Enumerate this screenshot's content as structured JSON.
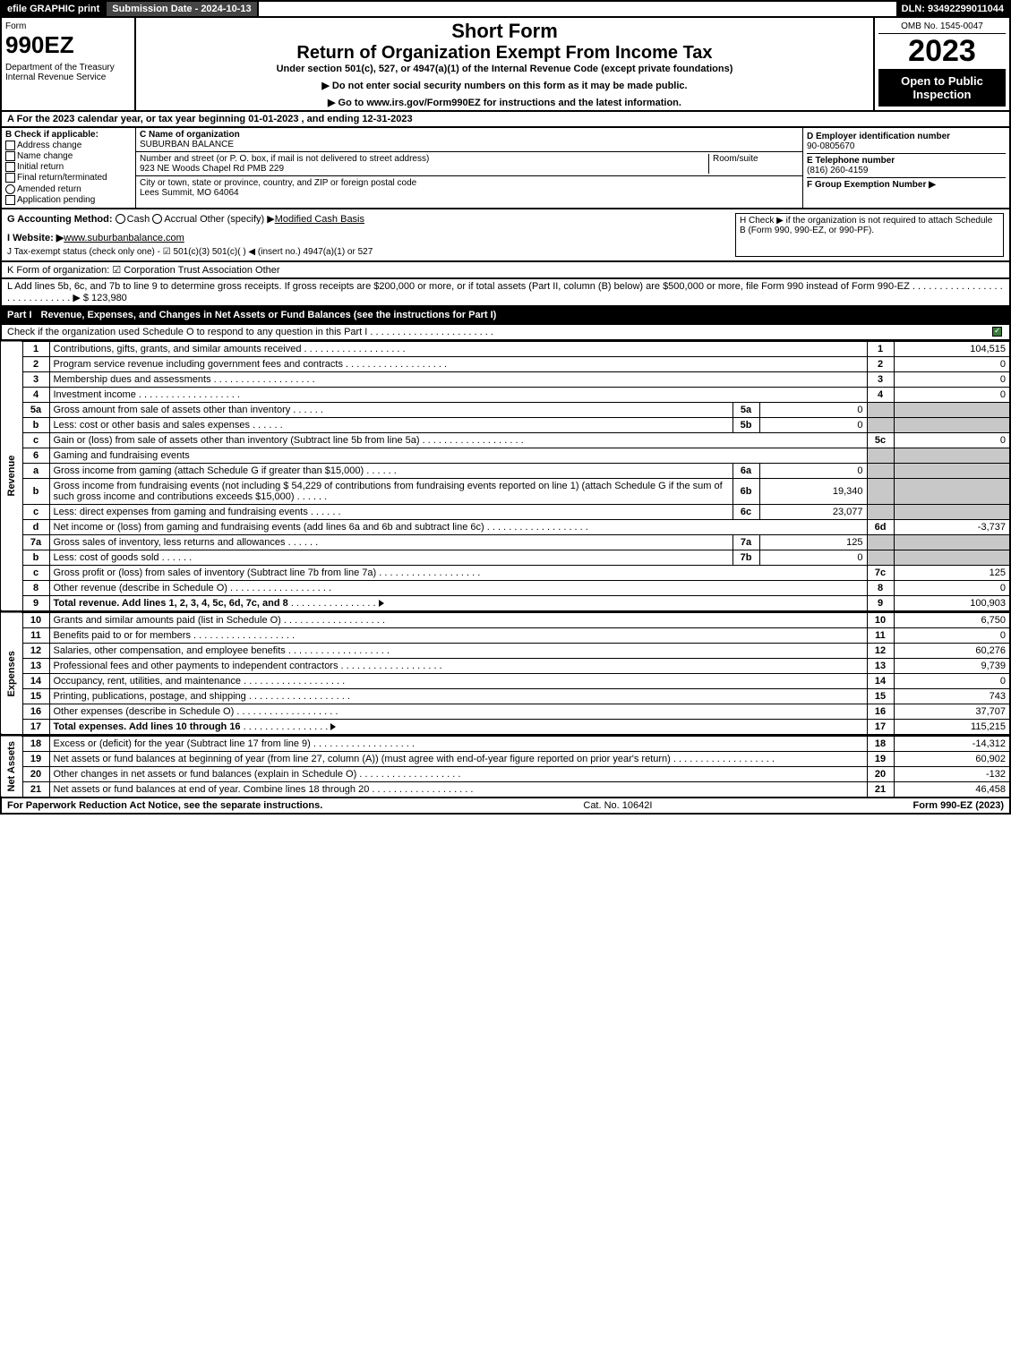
{
  "top": {
    "efile": "efile GRAPHIC print",
    "submission": "Submission Date - 2024-10-13",
    "dln": "DLN: 93492299011044"
  },
  "header": {
    "form_word": "Form",
    "form_num": "990EZ",
    "dept": "Department of the Treasury\nInternal Revenue Service",
    "short": "Short Form",
    "return": "Return of Organization Exempt From Income Tax",
    "under": "Under section 501(c), 527, or 4947(a)(1) of the Internal Revenue Code (except private foundations)",
    "note1": "▶ Do not enter social security numbers on this form as it may be made public.",
    "note2": "▶ Go to www.irs.gov/Form990EZ for instructions and the latest information.",
    "omb": "OMB No. 1545-0047",
    "year": "2023",
    "open": "Open to Public Inspection"
  },
  "line_a": "A  For the 2023 calendar year, or tax year beginning 01-01-2023 , and ending 12-31-2023",
  "b": {
    "label": "B  Check if applicable:",
    "opts": [
      "Address change",
      "Name change",
      "Initial return",
      "Final return/terminated",
      "Amended return",
      "Application pending"
    ]
  },
  "c": {
    "name_lbl": "C Name of organization",
    "name": "SUBURBAN BALANCE",
    "addr_lbl": "Number and street (or P. O. box, if mail is not delivered to street address)",
    "room_lbl": "Room/suite",
    "addr": "923 NE Woods Chapel Rd PMB 229",
    "city_lbl": "City or town, state or province, country, and ZIP or foreign postal code",
    "city": "Lees Summit, MO  64064"
  },
  "d": {
    "ein_lbl": "D Employer identification number",
    "ein": "90-0805670",
    "tel_lbl": "E Telephone number",
    "tel": "(816) 260-4159",
    "grp_lbl": "F Group Exemption Number  ▶"
  },
  "g": {
    "label": "G Accounting Method:",
    "opts": "Cash    Accrual    Other (specify) ▶",
    "val": "Modified Cash Basis"
  },
  "h": "H  Check ▶     if the organization is not required to attach Schedule B (Form 990, 990-EZ, or 990-PF).",
  "i": {
    "label": "I Website: ▶",
    "val": "www.suburbanbalance.com"
  },
  "j": "J Tax-exempt status (check only one) -  ☑ 501(c)(3)   501(c)(  ) ◀ (insert no.)   4947(a)(1) or   527",
  "k": "K Form of organization:   ☑ Corporation    Trust    Association    Other",
  "l": "L Add lines 5b, 6c, and 7b to line 9 to determine gross receipts. If gross receipts are $200,000 or more, or if total assets (Part II, column (B) below) are $500,000 or more, file Form 990 instead of Form 990-EZ  . . . . . . . . . . . . . . . . . . . . . . . . . . . . .  ▶ $ 123,980",
  "part1": {
    "num": "Part I",
    "title": "Revenue, Expenses, and Changes in Net Assets or Fund Balances (see the instructions for Part I)",
    "desc": "Check if the organization used Schedule O to respond to any question in this Part I . . . . . . . . . . . . . . . . . . . . . . ."
  },
  "sides": {
    "rev": "Revenue",
    "exp": "Expenses",
    "net": "Net Assets"
  },
  "rows": [
    {
      "n": "1",
      "desc": "Contributions, gifts, grants, and similar amounts received",
      "ln": "1",
      "val": "104,515"
    },
    {
      "n": "2",
      "desc": "Program service revenue including government fees and contracts",
      "ln": "2",
      "val": "0"
    },
    {
      "n": "3",
      "desc": "Membership dues and assessments",
      "ln": "3",
      "val": "0"
    },
    {
      "n": "4",
      "desc": "Investment income",
      "ln": "4",
      "val": "0"
    },
    {
      "n": "5a",
      "desc": "Gross amount from sale of assets other than inventory",
      "sub": "5a",
      "subval": "0"
    },
    {
      "n": "b",
      "desc": "Less: cost or other basis and sales expenses",
      "sub": "5b",
      "subval": "0"
    },
    {
      "n": "c",
      "desc": "Gain or (loss) from sale of assets other than inventory (Subtract line 5b from line 5a)",
      "ln": "5c",
      "val": "0"
    },
    {
      "n": "6",
      "desc": "Gaming and fundraising events"
    },
    {
      "n": "a",
      "desc": "Gross income from gaming (attach Schedule G if greater than $15,000)",
      "sub": "6a",
      "subval": "0"
    },
    {
      "n": "b",
      "desc": "Gross income from fundraising events (not including $  54,229          of contributions from fundraising events reported on line 1) (attach Schedule G if the sum of such gross income and contributions exceeds $15,000)",
      "sub": "6b",
      "subval": "19,340"
    },
    {
      "n": "c",
      "desc": "Less: direct expenses from gaming and fundraising events",
      "sub": "6c",
      "subval": "23,077"
    },
    {
      "n": "d",
      "desc": "Net income or (loss) from gaming and fundraising events (add lines 6a and 6b and subtract line 6c)",
      "ln": "6d",
      "val": "-3,737"
    },
    {
      "n": "7a",
      "desc": "Gross sales of inventory, less returns and allowances",
      "sub": "7a",
      "subval": "125"
    },
    {
      "n": "b",
      "desc": "Less: cost of goods sold",
      "sub": "7b",
      "subval": "0"
    },
    {
      "n": "c",
      "desc": "Gross profit or (loss) from sales of inventory (Subtract line 7b from line 7a)",
      "ln": "7c",
      "val": "125"
    },
    {
      "n": "8",
      "desc": "Other revenue (describe in Schedule O)",
      "ln": "8",
      "val": "0"
    },
    {
      "n": "9",
      "desc": "Total revenue. Add lines 1, 2, 3, 4, 5c, 6d, 7c, and 8",
      "ln": "9",
      "val": "100,903",
      "bold": true,
      "arrow": true
    }
  ],
  "exp_rows": [
    {
      "n": "10",
      "desc": "Grants and similar amounts paid (list in Schedule O)",
      "ln": "10",
      "val": "6,750"
    },
    {
      "n": "11",
      "desc": "Benefits paid to or for members",
      "ln": "11",
      "val": "0"
    },
    {
      "n": "12",
      "desc": "Salaries, other compensation, and employee benefits",
      "ln": "12",
      "val": "60,276"
    },
    {
      "n": "13",
      "desc": "Professional fees and other payments to independent contractors",
      "ln": "13",
      "val": "9,739"
    },
    {
      "n": "14",
      "desc": "Occupancy, rent, utilities, and maintenance",
      "ln": "14",
      "val": "0"
    },
    {
      "n": "15",
      "desc": "Printing, publications, postage, and shipping",
      "ln": "15",
      "val": "743"
    },
    {
      "n": "16",
      "desc": "Other expenses (describe in Schedule O)",
      "ln": "16",
      "val": "37,707"
    },
    {
      "n": "17",
      "desc": "Total expenses. Add lines 10 through 16",
      "ln": "17",
      "val": "115,215",
      "bold": true,
      "arrow": true
    }
  ],
  "net_rows": [
    {
      "n": "18",
      "desc": "Excess or (deficit) for the year (Subtract line 17 from line 9)",
      "ln": "18",
      "val": "-14,312"
    },
    {
      "n": "19",
      "desc": "Net assets or fund balances at beginning of year (from line 27, column (A)) (must agree with end-of-year figure reported on prior year's return)",
      "ln": "19",
      "val": "60,902"
    },
    {
      "n": "20",
      "desc": "Other changes in net assets or fund balances (explain in Schedule O)",
      "ln": "20",
      "val": "-132"
    },
    {
      "n": "21",
      "desc": "Net assets or fund balances at end of year. Combine lines 18 through 20",
      "ln": "21",
      "val": "46,458"
    }
  ],
  "footer": {
    "left": "For Paperwork Reduction Act Notice, see the separate instructions.",
    "mid": "Cat. No. 10642I",
    "right": "Form 990-EZ (2023)"
  }
}
